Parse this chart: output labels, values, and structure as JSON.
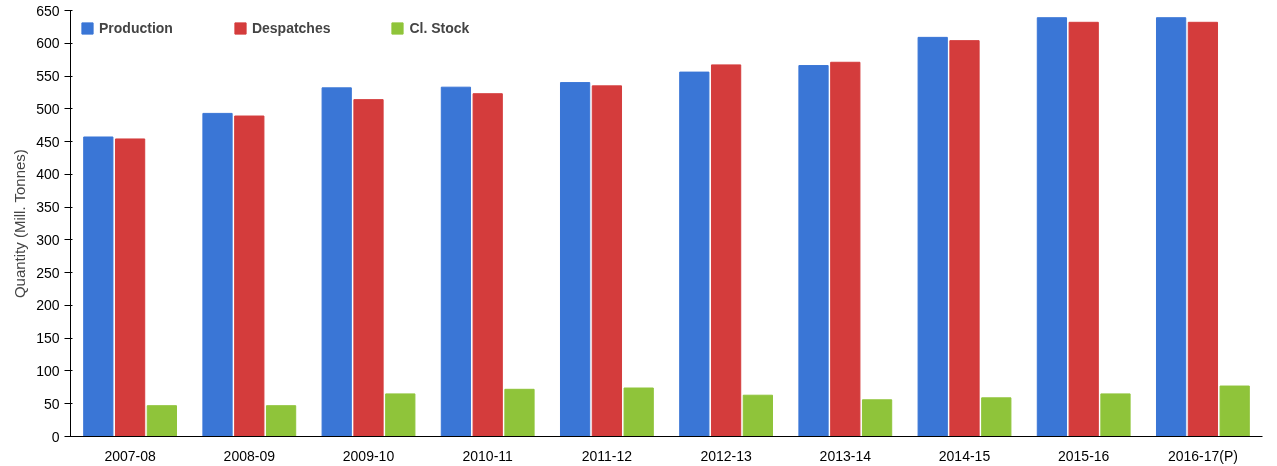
{
  "chart_data": {
    "type": "bar",
    "ylabel": "Quantity (Mill. Tonnes)",
    "categories": [
      "2007-08",
      "2008-09",
      "2009-10",
      "2010-11",
      "2011-12",
      "2012-13",
      "2013-14",
      "2014-15",
      "2015-16",
      "2016-17(P)"
    ],
    "series": [
      {
        "name": "Production",
        "color": "#3a76d6",
        "values": [
          457,
          493,
          532,
          533,
          540,
          556,
          566,
          609,
          639,
          639
        ]
      },
      {
        "name": "Despatches",
        "color": "#d43c3c",
        "values": [
          454,
          489,
          514,
          523,
          535,
          567,
          571,
          604,
          632,
          632
        ]
      },
      {
        "name": "Cl. Stock",
        "color": "#8fc43a",
        "values": [
          47,
          47,
          65,
          72,
          74,
          63,
          56,
          59,
          65,
          77
        ]
      }
    ],
    "ylim": [
      0,
      650
    ],
    "yticks": [
      0,
      50,
      100,
      150,
      200,
      250,
      300,
      350,
      400,
      450,
      500,
      550,
      600,
      650
    ],
    "grid": false,
    "legend": "top left"
  }
}
